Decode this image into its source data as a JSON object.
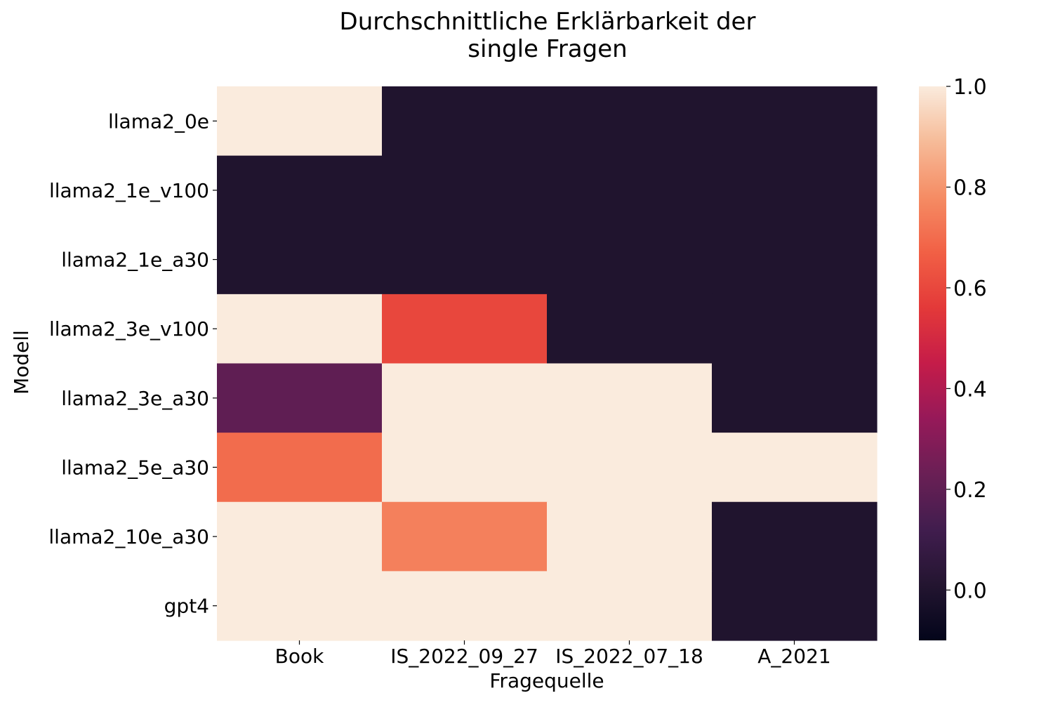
{
  "chart_data": {
    "type": "heatmap",
    "title_lines": [
      "Durchschnittliche Erklärbarkeit der",
      "single Fragen"
    ],
    "xlabel": "Fragequelle",
    "ylabel": "Modell",
    "columns": [
      "Book",
      "IS_2022_09_27",
      "IS_2022_07_18",
      "A_2021"
    ],
    "rows": [
      "llama2_0e",
      "llama2_1e_v100",
      "llama2_1e_a30",
      "llama2_3e_v100",
      "llama2_3e_a30",
      "llama2_5e_a30",
      "llama2_10e_a30",
      "gpt4"
    ],
    "values": [
      [
        1.0,
        0.0,
        0.0,
        0.0
      ],
      [
        0.0,
        0.0,
        0.0,
        0.0
      ],
      [
        0.0,
        0.0,
        0.0,
        0.0
      ],
      [
        1.0,
        0.6,
        0.0,
        0.0
      ],
      [
        0.2,
        1.0,
        1.0,
        0.0
      ],
      [
        0.7,
        1.0,
        1.0,
        1.0
      ],
      [
        1.0,
        0.75,
        1.0,
        0.0
      ],
      [
        1.0,
        1.0,
        1.0,
        0.0
      ]
    ],
    "colorbar": {
      "vmin": -0.1,
      "vmax": 1.0,
      "ticks": [
        0.0,
        0.2,
        0.4,
        0.6,
        0.8,
        1.0
      ],
      "tick_labels": [
        "0.0",
        "0.2",
        "0.4",
        "0.6",
        "0.8",
        "1.0"
      ],
      "colormap": "rocket"
    }
  }
}
